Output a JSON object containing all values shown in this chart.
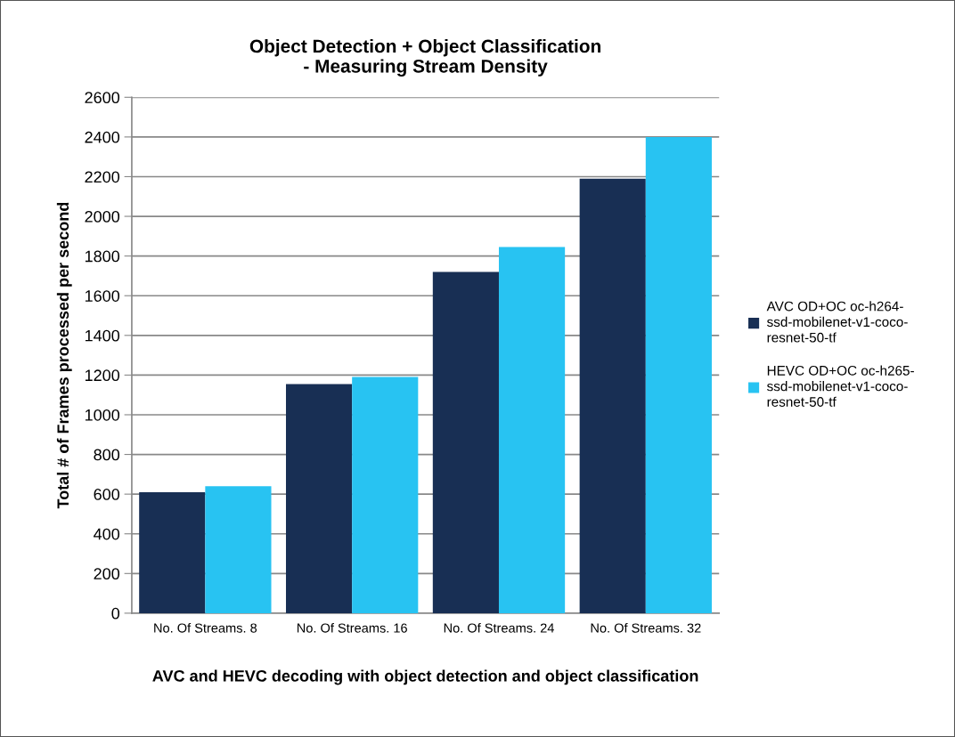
{
  "chart_data": {
    "type": "bar",
    "title": "Object Detection + Object Classification\n- Measuring Stream Density",
    "xlabel": "AVC and HEVC decoding with object detection and object classification",
    "ylabel": "Total # of Frames processed per second",
    "categories": [
      "No. Of Streams. 8",
      "No. Of Streams. 16",
      "No. Of Streams. 24",
      "No. Of Streams. 32"
    ],
    "series": [
      {
        "name": "AVC OD+OC oc-h264-\nssd-mobilenet-v1-coco-\nresnet-50-tf",
        "color": "#182f54",
        "values": [
          610,
          1155,
          1720,
          2190
        ]
      },
      {
        "name": "HEVC OD+OC oc-h265-\nssd-mobilenet-v1-coco-\nresnet-50-tf",
        "color": "#28c3f2",
        "values": [
          640,
          1190,
          1845,
          2400
        ]
      }
    ],
    "ylim": [
      0,
      2600
    ],
    "yticks": [
      0,
      200,
      400,
      600,
      800,
      1000,
      1200,
      1400,
      1600,
      1800,
      2000,
      2200,
      2400,
      2600
    ],
    "grid": "y",
    "legend": "right"
  }
}
